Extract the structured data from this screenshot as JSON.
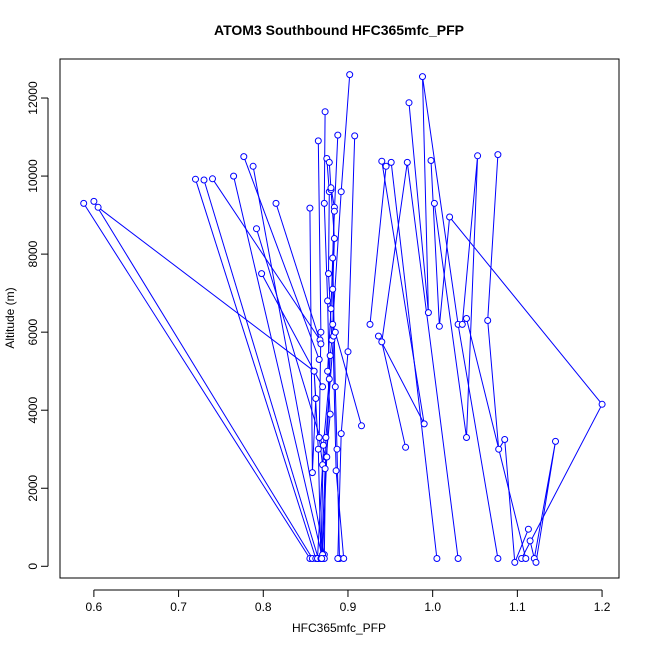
{
  "chart_data": {
    "type": "scatter",
    "title": "ATOM3 Southbound HFC365mfc_PFP",
    "xlabel": "HFC365mfc_PFP",
    "ylabel": "Altitude (m)",
    "xlim": [
      0.56,
      1.22
    ],
    "ylim": [
      -300,
      13000
    ],
    "x_ticks": [
      0.6,
      0.7,
      0.8,
      0.9,
      1.0,
      1.1,
      1.2
    ],
    "x_tick_labels": [
      "0.6",
      "0.7",
      "0.8",
      "0.9",
      "1.0",
      "1.1",
      "1.2"
    ],
    "y_ticks": [
      0,
      2000,
      4000,
      6000,
      8000,
      10000,
      12000
    ],
    "y_tick_labels": [
      "0",
      "2000",
      "4000",
      "6000",
      "8000",
      "10000",
      "12000"
    ],
    "grid": false,
    "legend": "none",
    "series_color": "#0000ff",
    "marker": "open-circle",
    "connected": true,
    "series": [
      {
        "profiles": [
          [
            [
              0.588,
              9300
            ],
            [
              0.855,
              200
            ]
          ],
          [
            [
              0.6,
              9350
            ],
            [
              0.858,
              200
            ]
          ],
          [
            [
              0.605,
              9200
            ],
            [
              0.86,
              5000
            ]
          ],
          [
            [
              0.72,
              9920
            ],
            [
              0.862,
              200
            ]
          ],
          [
            [
              0.73,
              9900
            ],
            [
              0.865,
              200
            ]
          ],
          [
            [
              0.74,
              9930
            ],
            [
              0.867,
              5800
            ]
          ],
          [
            [
              0.765,
              10000
            ],
            [
              0.87,
              200
            ]
          ],
          [
            [
              0.777,
              10500
            ],
            [
              0.866,
              5300
            ]
          ],
          [
            [
              0.788,
              10250
            ],
            [
              0.872,
              300
            ]
          ],
          [
            [
              0.792,
              8650
            ],
            [
              0.874,
              2800
            ]
          ],
          [
            [
              0.798,
              7500
            ],
            [
              0.87,
              4600
            ]
          ],
          [
            [
              0.815,
              9300
            ],
            [
              0.868,
              5700
            ]
          ],
          [
            [
              0.855,
              9180
            ],
            [
              0.858,
              2400
            ],
            [
              0.862,
              4300
            ],
            [
              0.86,
              5000
            ],
            [
              0.865,
              3000
            ],
            [
              0.868,
              200
            ]
          ],
          [
            [
              0.865,
              10900
            ],
            [
              0.868,
              6000
            ],
            [
              0.866,
              3300
            ],
            [
              0.87,
              2600
            ],
            [
              0.864,
              200
            ]
          ],
          [
            [
              0.873,
              11650
            ],
            [
              0.872,
              9300
            ],
            [
              0.876,
              6800
            ],
            [
              0.878,
              4800
            ],
            [
              0.871,
              3100
            ],
            [
              0.868,
              200
            ]
          ],
          [
            [
              0.875,
              10450
            ],
            [
              0.878,
              9600
            ],
            [
              0.877,
              7500
            ],
            [
              0.881,
              5800
            ],
            [
              0.879,
              5400
            ],
            [
              0.875,
              2800
            ],
            [
              0.87,
              300
            ]
          ],
          [
            [
              0.878,
              10350
            ],
            [
              0.88,
              9650
            ],
            [
              0.884,
              8400
            ],
            [
              0.882,
              7100
            ],
            [
              0.883,
              5900
            ],
            [
              0.874,
              3300
            ],
            [
              0.872,
              200
            ]
          ],
          [
            [
              0.88,
              9700
            ],
            [
              0.884,
              9200
            ],
            [
              0.88,
              6600
            ],
            [
              0.876,
              5000
            ],
            [
              0.879,
              3900
            ],
            [
              0.873,
              2500
            ],
            [
              0.869,
              200
            ]
          ],
          [
            [
              0.888,
              11050
            ],
            [
              0.884,
              9100
            ],
            [
              0.882,
              7900
            ],
            [
              0.885,
              4600
            ],
            [
              0.887,
              3000
            ],
            [
              0.89,
              200
            ]
          ],
          [
            [
              0.902,
              12600
            ],
            [
              0.892,
              9600
            ],
            [
              0.882,
              6200
            ],
            [
              0.886,
              2450
            ],
            [
              0.895,
              200
            ]
          ],
          [
            [
              0.908,
              11030
            ],
            [
              0.9,
              5500
            ],
            [
              0.892,
              3400
            ],
            [
              0.888,
              200
            ]
          ],
          [
            [
              0.916,
              3600
            ],
            [
              0.885,
              6000
            ]
          ],
          [
            [
              0.926,
              6200
            ],
            [
              0.945,
              10250
            ]
          ],
          [
            [
              0.936,
              5900
            ],
            [
              0.99,
              3650
            ],
            [
              0.94,
              10380
            ]
          ],
          [
            [
              0.951,
              10350
            ],
            [
              1.005,
              200
            ]
          ],
          [
            [
              0.968,
              3050
            ],
            [
              0.94,
              5750
            ],
            [
              0.97,
              10350
            ],
            [
              1.03,
              200
            ]
          ],
          [
            [
              0.972,
              11880
            ],
            [
              0.995,
              6500
            ],
            [
              0.988,
              12550
            ],
            [
              1.03,
              6200
            ],
            [
              1.077,
              200
            ]
          ],
          [
            [
              0.998,
              10400
            ],
            [
              1.008,
              6150
            ],
            [
              1.02,
              8950
            ],
            [
              1.2,
              4150
            ],
            [
              1.105,
              200
            ]
          ],
          [
            [
              1.002,
              9300
            ],
            [
              1.04,
              3300
            ],
            [
              1.053,
              10520
            ],
            [
              1.035,
              6200
            ],
            [
              1.04,
              6350
            ],
            [
              1.11,
              200
            ]
          ],
          [
            [
              1.077,
              10550
            ],
            [
              1.065,
              6300
            ],
            [
              1.078,
              3000
            ],
            [
              1.085,
              3250
            ],
            [
              1.097,
              100
            ],
            [
              1.113,
              950
            ]
          ],
          [
            [
              1.115,
              650
            ],
            [
              1.12,
              200
            ],
            [
              1.145,
              3200
            ],
            [
              1.122,
              100
            ]
          ]
        ]
      }
    ]
  }
}
